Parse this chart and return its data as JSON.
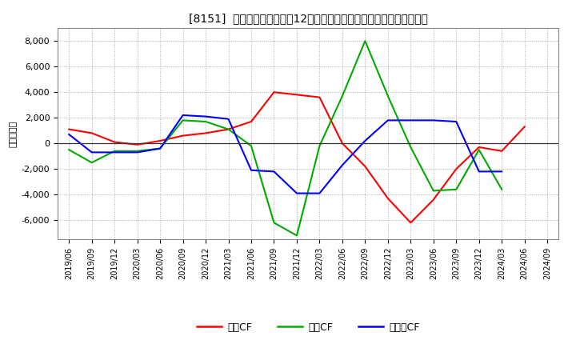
{
  "title": "[8151]  キャッシュフローの12か月移動合計の対前年同期増減額の推移",
  "ylabel": "（百万円）",
  "background_color": "#ffffff",
  "plot_bg_color": "#ffffff",
  "ylim": [
    -7500,
    9000
  ],
  "yticks": [
    -6000,
    -4000,
    -2000,
    0,
    2000,
    4000,
    6000,
    8000
  ],
  "x_labels": [
    "2019/06",
    "2019/09",
    "2019/12",
    "2020/03",
    "2020/06",
    "2020/09",
    "2020/12",
    "2021/03",
    "2021/06",
    "2021/09",
    "2021/12",
    "2022/03",
    "2022/06",
    "2022/09",
    "2022/12",
    "2023/03",
    "2023/06",
    "2023/09",
    "2023/12",
    "2024/03",
    "2024/06",
    "2024/09"
  ],
  "series": {
    "営業CF": {
      "color": "#ff0000",
      "values": [
        1100,
        800,
        100,
        -100,
        200,
        600,
        800,
        1100,
        1700,
        4000,
        3800,
        3600,
        0,
        -1800,
        -4300,
        -6200,
        -4400,
        -2000,
        -300,
        -600,
        1300,
        null
      ]
    },
    "投資CF": {
      "color": "#00aa00",
      "values": [
        -500,
        -1500,
        -600,
        -600,
        -400,
        1800,
        1700,
        1100,
        -200,
        -6200,
        -7200,
        -200,
        3700,
        8000,
        3700,
        -300,
        -3700,
        -3600,
        -500,
        -3600,
        null,
        null
      ]
    },
    "フリーCF": {
      "color": "#0000ff",
      "values": [
        700,
        -700,
        -700,
        -700,
        -400,
        2200,
        2100,
        1900,
        -2100,
        -2200,
        -3900,
        -3900,
        -1700,
        200,
        1800,
        1800,
        1800,
        1700,
        -2200,
        -2200,
        null,
        null
      ]
    }
  },
  "legend_labels": [
    "営業CF",
    "投資CF",
    "フリーCF"
  ],
  "legend_colors": [
    "#ff0000",
    "#00aa00",
    "#0000ff"
  ]
}
